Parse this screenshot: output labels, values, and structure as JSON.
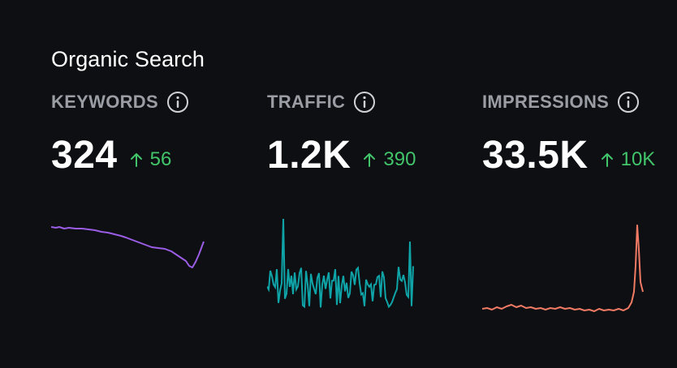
{
  "section": {
    "title": "Organic Search"
  },
  "metrics": [
    {
      "label": "KEYWORDS",
      "value": "324",
      "delta": "56",
      "icon": "info-icon",
      "delta_icon": "arrow-up-icon",
      "color": "#9b5de5",
      "delta_color": "#42c46a"
    },
    {
      "label": "TRAFFIC",
      "value": "1.2K",
      "delta": "390",
      "icon": "info-icon",
      "delta_icon": "arrow-up-icon",
      "color": "#0fa4a8",
      "delta_color": "#42c46a"
    },
    {
      "label": "IMPRESSIONS",
      "value": "33.5K",
      "delta": "10K",
      "icon": "info-icon",
      "delta_icon": "arrow-up-icon",
      "color": "#f07a63",
      "delta_color": "#42c46a"
    }
  ]
}
